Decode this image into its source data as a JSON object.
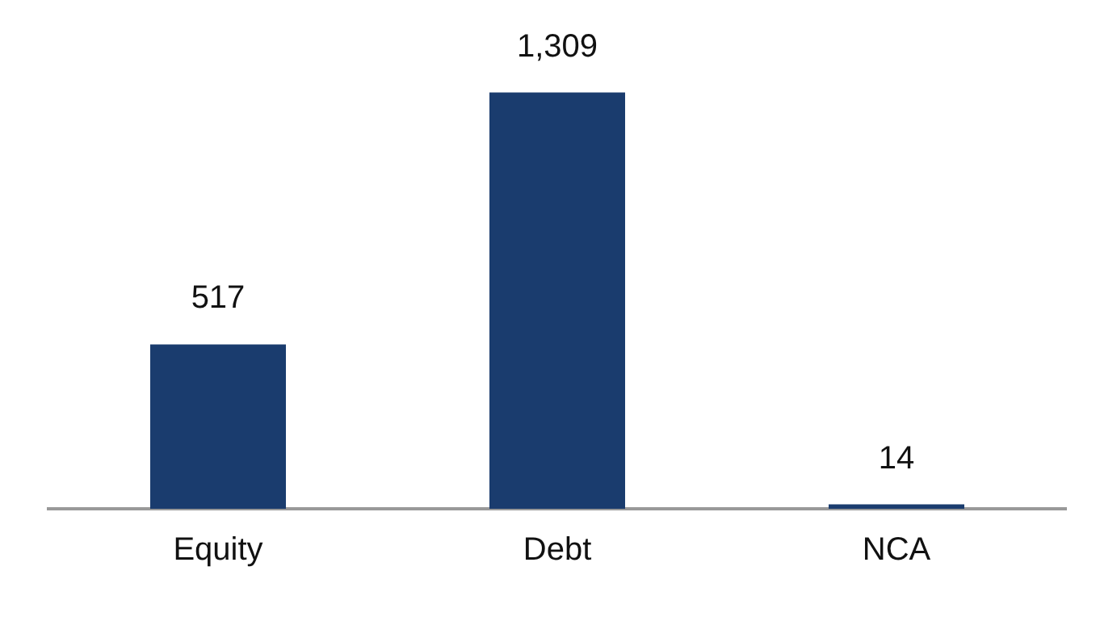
{
  "chart_data": {
    "type": "bar",
    "categories": [
      "Equity",
      "Debt",
      "NCA"
    ],
    "values": [
      517,
      1309,
      14
    ],
    "value_labels": [
      "517",
      "1,309",
      "14"
    ],
    "color": "#1a3c6e",
    "grid": false,
    "legend": false
  }
}
